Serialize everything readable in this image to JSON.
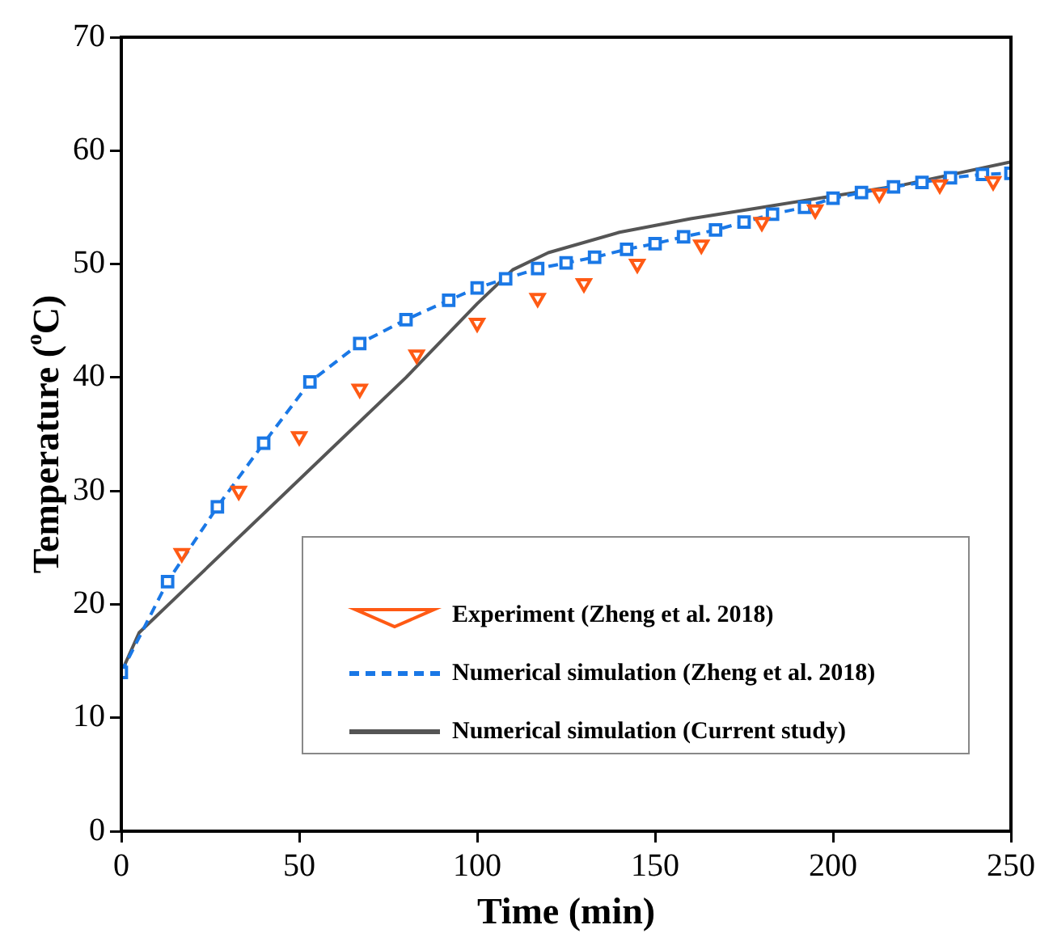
{
  "chart_data": {
    "type": "line",
    "xlabel": "Time (min)",
    "ylabel": "Temperature ($^{o}$C)",
    "xlim": [
      0,
      250
    ],
    "xticks": [
      0,
      50,
      100,
      150,
      200,
      250
    ],
    "ylim": [
      0,
      70
    ],
    "yticks": [
      0,
      10,
      20,
      30,
      40,
      50,
      60,
      70
    ],
    "grid": false,
    "legend": "bottom right",
    "series": [
      {
        "name": "Experiment (Zheng et al. 2018)",
        "type": "scatter",
        "marker": "triangle",
        "color": "#ff5a14",
        "x": [
          17,
          33,
          50,
          67,
          83,
          100,
          117,
          130,
          145,
          163,
          180,
          195,
          213,
          230,
          245
        ],
        "values": [
          24.5,
          30,
          34.8,
          39,
          42,
          44.8,
          47,
          48.3,
          50,
          51.7,
          53.7,
          54.8,
          56.2,
          57,
          57.3
        ]
      },
      {
        "name": "Numerical simulation (Zheng et al. 2018)",
        "type": "line",
        "marker": "square",
        "line_style": "dashed",
        "color": "#1a78e6",
        "x": [
          0,
          13,
          27,
          40,
          53,
          67,
          80,
          92,
          100,
          108,
          117,
          125,
          133,
          142,
          150,
          158,
          167,
          175,
          183,
          192,
          200,
          208,
          217,
          225,
          233,
          242,
          250
        ],
        "values": [
          14,
          22,
          28.6,
          34.2,
          39.6,
          43,
          45.1,
          46.8,
          47.9,
          48.7,
          49.6,
          50.1,
          50.6,
          51.3,
          51.8,
          52.4,
          53,
          53.7,
          54.4,
          55,
          55.8,
          56.3,
          56.8,
          57.2,
          57.6,
          57.9,
          58
        ]
      },
      {
        "name": "Numerical simulation (Current study)",
        "type": "line",
        "marker": "none",
        "line_style": "solid",
        "color": "#555555",
        "x": [
          0,
          5,
          20,
          40,
          60,
          80,
          100,
          110,
          120,
          140,
          160,
          180,
          200,
          220,
          250
        ],
        "values": [
          14,
          17.5,
          22,
          28,
          34,
          40,
          46.5,
          49.5,
          51,
          52.8,
          54,
          55,
          56,
          57,
          59
        ]
      }
    ]
  }
}
